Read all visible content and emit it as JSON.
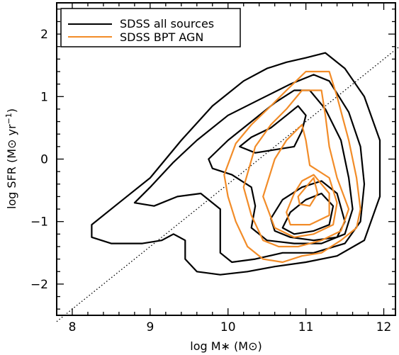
{
  "chart_data": {
    "type": "contour",
    "xlabel": "log M∗ (M⊙)",
    "ylabel_parts": [
      "log SFR (M⊙ yr",
      "−1",
      ")"
    ],
    "xlim": [
      7.8,
      12.15
    ],
    "ylim": [
      -2.5,
      2.5
    ],
    "xticks": [
      8,
      9,
      10,
      11,
      12
    ],
    "yticks": [
      -2,
      -1,
      0,
      1,
      2
    ],
    "xtick_labels": [
      "8",
      "9",
      "10",
      "11",
      "12"
    ],
    "ytick_labels": [
      "−2",
      "−1",
      "0",
      "1",
      "2"
    ],
    "grid": false,
    "legend_position": "top-left",
    "reference_line": {
      "style": "dotted",
      "slope": 1.0,
      "intercept": -10.4
    },
    "series": [
      {
        "name": "SDSS all sources",
        "color": "#000000",
        "contours": [
          [
            [
              8.25,
              -1.05
            ],
            [
              8.6,
              -0.7
            ],
            [
              9.0,
              -0.3
            ],
            [
              9.4,
              0.3
            ],
            [
              9.8,
              0.85
            ],
            [
              10.2,
              1.25
            ],
            [
              10.5,
              1.45
            ],
            [
              10.75,
              1.55
            ],
            [
              11.0,
              1.62
            ],
            [
              11.25,
              1.7
            ],
            [
              11.5,
              1.45
            ],
            [
              11.75,
              1.0
            ],
            [
              11.95,
              0.3
            ],
            [
              11.95,
              -0.6
            ],
            [
              11.75,
              -1.3
            ],
            [
              11.4,
              -1.55
            ],
            [
              11.0,
              -1.65
            ],
            [
              10.6,
              -1.72
            ],
            [
              10.25,
              -1.8
            ],
            [
              9.9,
              -1.85
            ],
            [
              9.6,
              -1.8
            ],
            [
              9.45,
              -1.6
            ],
            [
              9.45,
              -1.3
            ],
            [
              9.3,
              -1.2
            ],
            [
              9.15,
              -1.3
            ],
            [
              8.9,
              -1.35
            ],
            [
              8.5,
              -1.35
            ],
            [
              8.25,
              -1.25
            ],
            [
              8.25,
              -1.05
            ]
          ],
          [
            [
              8.8,
              -0.7
            ],
            [
              9.0,
              -0.45
            ],
            [
              9.3,
              -0.05
            ],
            [
              9.6,
              0.3
            ],
            [
              10.0,
              0.7
            ],
            [
              10.4,
              0.95
            ],
            [
              10.8,
              1.2
            ],
            [
              11.1,
              1.35
            ],
            [
              11.3,
              1.25
            ],
            [
              11.55,
              0.75
            ],
            [
              11.7,
              0.2
            ],
            [
              11.75,
              -0.4
            ],
            [
              11.7,
              -1.0
            ],
            [
              11.5,
              -1.35
            ],
            [
              11.1,
              -1.5
            ],
            [
              10.7,
              -1.5
            ],
            [
              10.35,
              -1.6
            ],
            [
              10.05,
              -1.65
            ],
            [
              9.9,
              -1.5
            ],
            [
              9.9,
              -1.2
            ],
            [
              9.9,
              -0.8
            ],
            [
              9.65,
              -0.55
            ],
            [
              9.35,
              -0.6
            ],
            [
              9.05,
              -0.75
            ],
            [
              8.8,
              -0.7
            ]
          ],
          [
            [
              9.75,
              0.0
            ],
            [
              10.0,
              0.3
            ],
            [
              10.3,
              0.6
            ],
            [
              10.6,
              0.9
            ],
            [
              10.85,
              1.1
            ],
            [
              11.05,
              1.1
            ],
            [
              11.25,
              0.8
            ],
            [
              11.45,
              0.3
            ],
            [
              11.55,
              -0.3
            ],
            [
              11.6,
              -0.8
            ],
            [
              11.5,
              -1.2
            ],
            [
              11.2,
              -1.35
            ],
            [
              10.85,
              -1.35
            ],
            [
              10.5,
              -1.3
            ],
            [
              10.3,
              -1.1
            ],
            [
              10.35,
              -0.75
            ],
            [
              10.3,
              -0.45
            ],
            [
              10.05,
              -0.25
            ],
            [
              9.8,
              -0.15
            ],
            [
              9.75,
              0.0
            ]
          ],
          [
            [
              10.15,
              0.2
            ],
            [
              10.3,
              0.35
            ],
            [
              10.55,
              0.5
            ],
            [
              10.75,
              0.7
            ],
            [
              10.9,
              0.85
            ],
            [
              11.0,
              0.7
            ],
            [
              10.95,
              0.45
            ],
            [
              10.85,
              0.2
            ],
            [
              10.6,
              0.15
            ],
            [
              10.35,
              0.1
            ],
            [
              10.15,
              0.2
            ]
          ],
          [
            [
              10.55,
              -0.95
            ],
            [
              10.7,
              -0.65
            ],
            [
              10.95,
              -0.45
            ],
            [
              11.2,
              -0.35
            ],
            [
              11.4,
              -0.55
            ],
            [
              11.5,
              -1.0
            ],
            [
              11.4,
              -1.25
            ],
            [
              11.1,
              -1.3
            ],
            [
              10.8,
              -1.25
            ],
            [
              10.6,
              -1.15
            ],
            [
              10.55,
              -0.95
            ]
          ],
          [
            [
              10.7,
              -1.1
            ],
            [
              10.8,
              -0.85
            ],
            [
              11.0,
              -0.65
            ],
            [
              11.2,
              -0.55
            ],
            [
              11.35,
              -0.75
            ],
            [
              11.3,
              -1.05
            ],
            [
              11.1,
              -1.15
            ],
            [
              10.85,
              -1.2
            ],
            [
              10.7,
              -1.1
            ]
          ]
        ]
      },
      {
        "name": "SDSS BPT AGN",
        "color": "#f28c28",
        "contours": [
          [
            [
              9.95,
              -0.25
            ],
            [
              10.1,
              0.25
            ],
            [
              10.3,
              0.55
            ],
            [
              10.55,
              0.85
            ],
            [
              10.75,
              1.1
            ],
            [
              11.0,
              1.4
            ],
            [
              11.3,
              1.4
            ],
            [
              11.4,
              1.0
            ],
            [
              11.55,
              0.3
            ],
            [
              11.65,
              -0.3
            ],
            [
              11.7,
              -0.8
            ],
            [
              11.65,
              -1.1
            ],
            [
              11.45,
              -1.3
            ],
            [
              11.2,
              -1.5
            ],
            [
              10.95,
              -1.55
            ],
            [
              10.7,
              -1.65
            ],
            [
              10.45,
              -1.6
            ],
            [
              10.25,
              -1.4
            ],
            [
              10.1,
              -1.0
            ],
            [
              10.0,
              -0.6
            ],
            [
              9.95,
              -0.25
            ]
          ],
          [
            [
              10.2,
              -0.45
            ],
            [
              10.35,
              0.2
            ],
            [
              10.55,
              0.55
            ],
            [
              10.75,
              0.8
            ],
            [
              10.95,
              1.1
            ],
            [
              11.2,
              1.1
            ],
            [
              11.25,
              0.7
            ],
            [
              11.3,
              0.2
            ],
            [
              11.4,
              -0.3
            ],
            [
              11.55,
              -0.8
            ],
            [
              11.45,
              -1.15
            ],
            [
              11.2,
              -1.3
            ],
            [
              10.9,
              -1.4
            ],
            [
              10.65,
              -1.4
            ],
            [
              10.45,
              -1.3
            ],
            [
              10.3,
              -0.9
            ],
            [
              10.2,
              -0.45
            ]
          ],
          [
            [
              10.45,
              -0.6
            ],
            [
              10.6,
              0.0
            ],
            [
              10.75,
              0.3
            ],
            [
              10.95,
              0.55
            ],
            [
              11.0,
              0.3
            ],
            [
              11.05,
              -0.1
            ],
            [
              11.3,
              -0.3
            ],
            [
              11.4,
              -0.7
            ],
            [
              11.35,
              -1.05
            ],
            [
              11.1,
              -1.2
            ],
            [
              10.85,
              -1.25
            ],
            [
              10.6,
              -1.1
            ],
            [
              10.45,
              -0.6
            ]
          ],
          [
            [
              10.75,
              -0.85
            ],
            [
              10.85,
              -0.55
            ],
            [
              10.95,
              -0.35
            ],
            [
              11.1,
              -0.25
            ],
            [
              11.3,
              -0.55
            ],
            [
              11.3,
              -0.9
            ],
            [
              11.05,
              -1.05
            ],
            [
              10.8,
              -1.05
            ],
            [
              10.75,
              -0.85
            ]
          ],
          [
            [
              10.9,
              -0.6
            ],
            [
              11.0,
              -0.45
            ],
            [
              11.1,
              -0.3
            ],
            [
              11.15,
              -0.55
            ],
            [
              11.05,
              -0.75
            ],
            [
              10.92,
              -0.72
            ],
            [
              10.9,
              -0.6
            ]
          ]
        ]
      }
    ]
  }
}
